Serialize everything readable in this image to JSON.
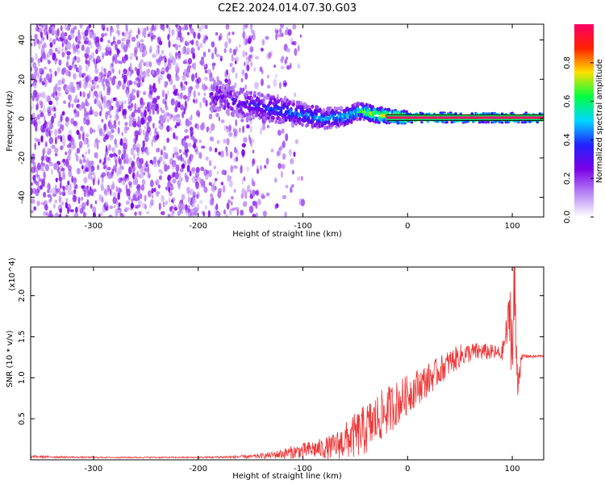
{
  "chart_data": [
    {
      "type": "heatmap",
      "title": "C2E2.2024.014.07.30.G03",
      "xlabel": "Height of straight line (km)",
      "ylabel": "Frequency (Hz)",
      "xlim": [
        -360,
        130
      ],
      "ylim": [
        -50,
        48
      ],
      "xticks": [
        -300,
        -200,
        -100,
        0,
        100
      ],
      "yticks": [
        -40,
        -20,
        0,
        20,
        40
      ],
      "colorbar": {
        "label": "Normalized spectral amplitude",
        "range": [
          0.0,
          1.0
        ],
        "ticks": [
          "0.0",
          "0.2",
          "0.4",
          "0.6",
          "0.8"
        ],
        "colors": [
          "#ffffff",
          "#b784f6",
          "#7a00e6",
          "#2222ff",
          "#00d8ff",
          "#00ff40",
          "#ffe000",
          "#ff2200",
          "#ff0066"
        ]
      },
      "ridge": {
        "x": [
          -185,
          -160,
          -140,
          -120,
          -100,
          -80,
          -60,
          -45,
          -30,
          -10,
          0,
          50,
          100,
          130
        ],
        "center_freq": [
          12,
          8,
          6,
          4,
          2,
          0,
          1,
          4,
          2,
          1,
          0.5,
          0.5,
          0.5,
          0.5
        ],
        "amplitude": [
          0.25,
          0.3,
          0.35,
          0.4,
          0.45,
          0.45,
          0.5,
          0.6,
          0.75,
          0.9,
          1.0,
          1.0,
          1.0,
          1.0
        ]
      },
      "noise_region_x": [
        -360,
        -140
      ]
    },
    {
      "type": "line",
      "xlabel": "Height of straight line (km)",
      "ylabel": "SNR (10 * v/v)",
      "yscale_label": "(x10^4)",
      "xlim": [
        -360,
        130
      ],
      "ylim": [
        0,
        2.35
      ],
      "xticks": [
        -300,
        -200,
        -100,
        0,
        100
      ],
      "yticks": [
        0.5,
        1.0,
        1.5,
        2.0
      ],
      "ytick_labels": [
        "0.5",
        "1.0",
        "1.5",
        "2.0"
      ],
      "series": [
        {
          "color": "#ee3333",
          "x": [
            -360,
            -300,
            -200,
            -150,
            -130,
            -120,
            -110,
            -100,
            -90,
            -80,
            -70,
            -60,
            -50,
            -40,
            -30,
            -20,
            -10,
            0,
            10,
            20,
            30,
            40,
            50,
            60,
            70,
            80,
            90,
            95,
            98,
            100,
            102,
            105,
            110,
            120,
            130
          ],
          "y": [
            0.04,
            0.03,
            0.03,
            0.04,
            0.06,
            0.08,
            0.1,
            0.12,
            0.14,
            0.15,
            0.18,
            0.25,
            0.32,
            0.4,
            0.52,
            0.62,
            0.72,
            0.82,
            0.92,
            1.0,
            1.1,
            1.2,
            1.28,
            1.32,
            1.33,
            1.32,
            1.3,
            1.6,
            1.9,
            1.3,
            2.15,
            1.0,
            1.27,
            1.26,
            1.27
          ],
          "noise": [
            0.02,
            0.01,
            0.01,
            0.03,
            0.05,
            0.08,
            0.1,
            0.12,
            0.14,
            0.16,
            0.2,
            0.28,
            0.35,
            0.4,
            0.4,
            0.38,
            0.35,
            0.3,
            0.28,
            0.25,
            0.22,
            0.2,
            0.18,
            0.15,
            0.14,
            0.12,
            0.12,
            0.3,
            0.5,
            0.9,
            0.9,
            0.3,
            0.03,
            0.02,
            0.02
          ]
        }
      ]
    }
  ]
}
